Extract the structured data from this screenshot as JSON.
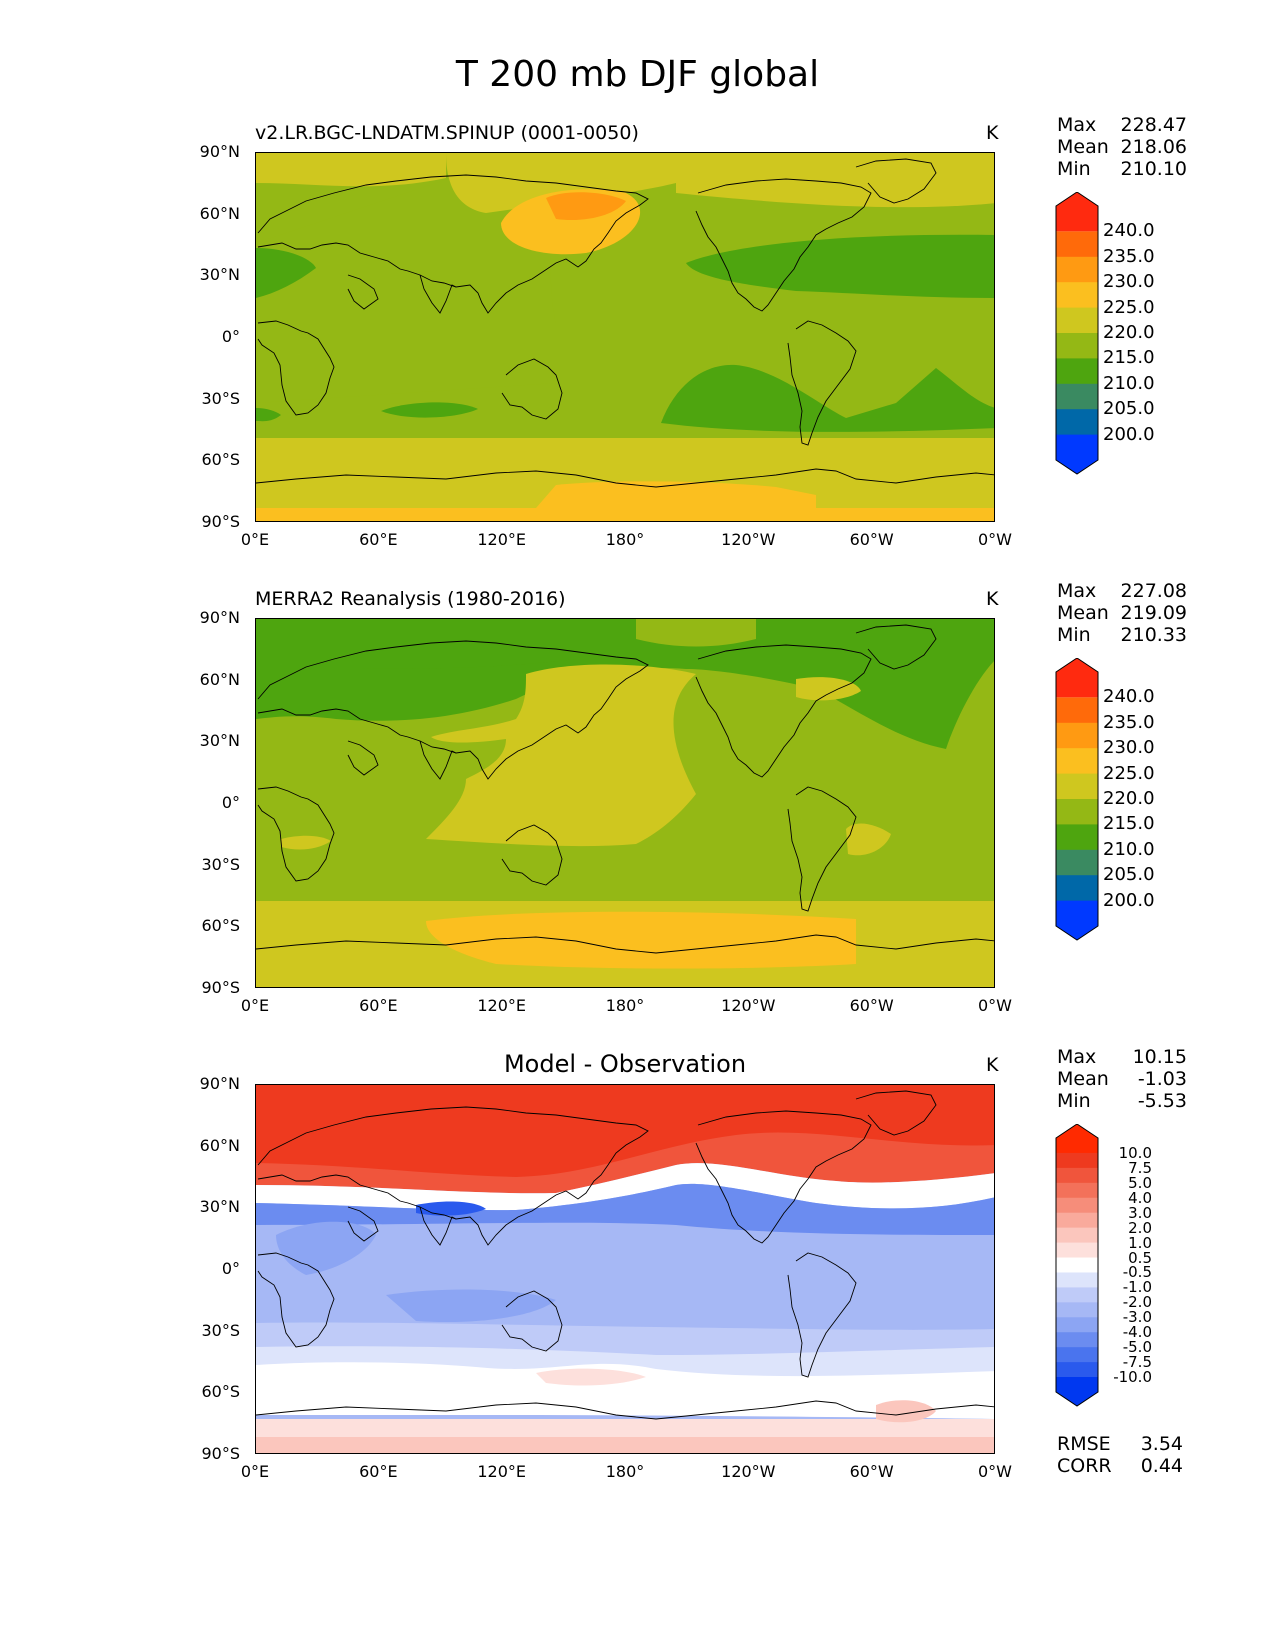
{
  "title": "T 200 mb DJF global",
  "x_ticks": [
    "0°E",
    "60°E",
    "120°E",
    "180°",
    "120°W",
    "60°W",
    "0°W"
  ],
  "y_ticks": [
    "90°N",
    "60°N",
    "30°N",
    "0°",
    "30°S",
    "60°S",
    "90°S"
  ],
  "panels": [
    {
      "id": "model",
      "title": "v2.LR.BGC-LNDATM.SPINUP (0001-0050)",
      "units": "K",
      "stats": {
        "max_label": "Max",
        "max": "228.47",
        "mean_label": "Mean",
        "mean": "218.06",
        "min_label": "Min",
        "min": "210.10"
      },
      "colorbar": {
        "labels": [
          "240.0",
          "235.0",
          "230.0",
          "225.0",
          "220.0",
          "215.0",
          "210.0",
          "205.0",
          "200.0"
        ],
        "colors": [
          "#0039ff",
          "#0068a8",
          "#3a8a61",
          "#4ea50f",
          "#94b815",
          "#cfc71f",
          "#fbbf1f",
          "#ff9a12",
          "#ff6a0a",
          "#ff2a0f"
        ]
      }
    },
    {
      "id": "obs",
      "title": "MERRA2 Reanalysis (1980-2016)",
      "units": "K",
      "stats": {
        "max_label": "Max",
        "max": "227.08",
        "mean_label": "Mean",
        "mean": "219.09",
        "min_label": "Min",
        "min": "210.33"
      },
      "colorbar": {
        "labels": [
          "240.0",
          "235.0",
          "230.0",
          "225.0",
          "220.0",
          "215.0",
          "210.0",
          "205.0",
          "200.0"
        ],
        "colors": [
          "#0039ff",
          "#0068a8",
          "#3a8a61",
          "#4ea50f",
          "#94b815",
          "#cfc71f",
          "#fbbf1f",
          "#ff9a12",
          "#ff6a0a",
          "#ff2a0f"
        ]
      }
    },
    {
      "id": "diff",
      "title": "Model - Observation",
      "units": "K",
      "stats": {
        "max_label": "Max",
        "max": "10.15",
        "mean_label": "Mean",
        "mean": "-1.03",
        "min_label": "Min",
        "min": "-5.53"
      },
      "colorbar": {
        "labels": [
          "10.0",
          "7.5",
          "5.0",
          "4.0",
          "3.0",
          "2.0",
          "1.0",
          "0.5",
          "-0.5",
          "-1.0",
          "-2.0",
          "-3.0",
          "-4.0",
          "-5.0",
          "-7.5",
          "-10.0"
        ],
        "colors": [
          "#0038f0",
          "#2a5aed",
          "#4a74ee",
          "#6b8cf0",
          "#8ca5f3",
          "#a6b8f5",
          "#bfcbf8",
          "#dde4fb",
          "#ffffff",
          "#fde0dc",
          "#fbc6bd",
          "#f9aa9c",
          "#f68d7a",
          "#f3715a",
          "#f0553c",
          "#ee3a1f",
          "#ff2a00"
        ]
      }
    }
  ],
  "diff_extra": {
    "rmse_label": "RMSE",
    "rmse": "3.54",
    "corr_label": "CORR",
    "corr": "0.44"
  }
}
